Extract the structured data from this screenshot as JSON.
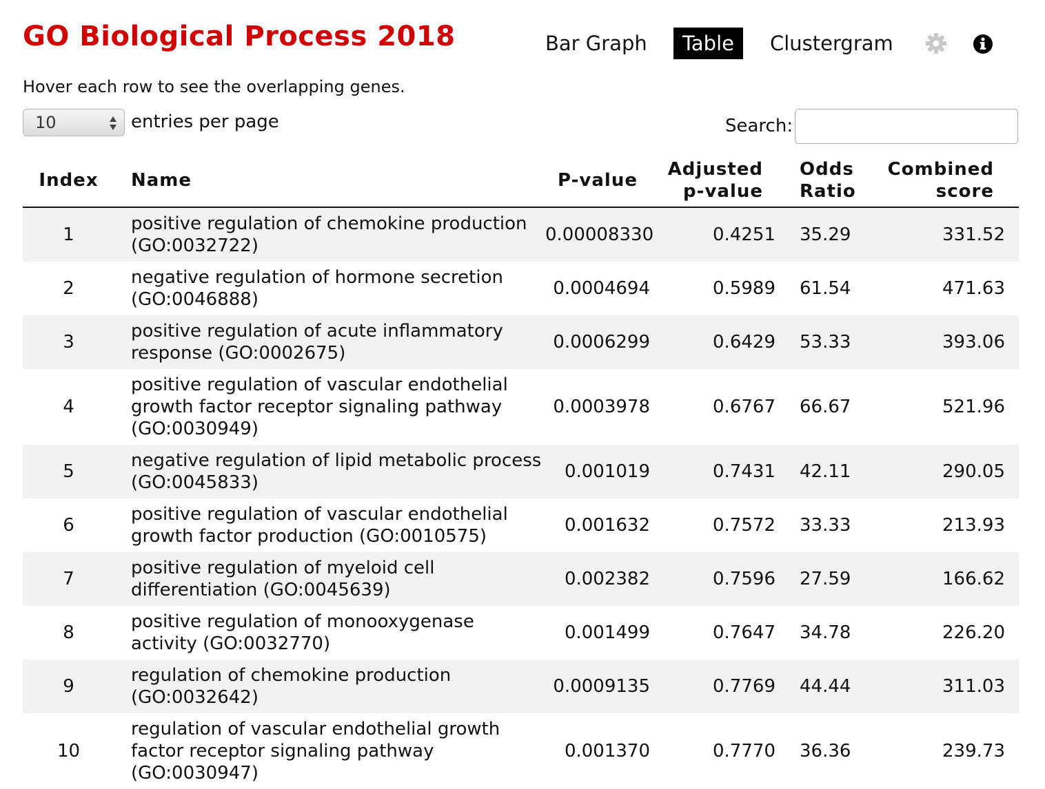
{
  "title": "GO Biological Process 2018",
  "view_tabs": [
    {
      "label": "Bar Graph",
      "active": false
    },
    {
      "label": "Table",
      "active": true
    },
    {
      "label": "Clustergram",
      "active": false
    }
  ],
  "icons": {
    "settings": "gear-icon",
    "info": "info-icon"
  },
  "colors": {
    "title": "#d00000",
    "active_tab_bg": "#000000",
    "stripe": "#f2f2f2"
  },
  "hint": "Hover each row to see the overlapping genes.",
  "paging": {
    "entries_value": "10",
    "entries_label": "entries per page"
  },
  "search": {
    "label": "Search:",
    "value": ""
  },
  "table": {
    "headers": {
      "index": "Index",
      "name": "Name",
      "pvalue": "P-value",
      "adjusted_line1": "Adjusted",
      "adjusted_line2": "p-value",
      "odds_line1": "Odds",
      "odds_line2": "Ratio",
      "combined_line1": "Combined",
      "combined_line2": "score"
    },
    "rows": [
      {
        "index": "1",
        "name": "positive regulation of chemokine production (GO:0032722)",
        "pvalue": "0.00008330",
        "adjusted": "0.4251",
        "odds": "35.29",
        "combined": "331.52"
      },
      {
        "index": "2",
        "name": "negative regulation of hormone secretion (GO:0046888)",
        "pvalue": "0.0004694",
        "adjusted": "0.5989",
        "odds": "61.54",
        "combined": "471.63"
      },
      {
        "index": "3",
        "name": "positive regulation of acute inflammatory response (GO:0002675)",
        "pvalue": "0.0006299",
        "adjusted": "0.6429",
        "odds": "53.33",
        "combined": "393.06"
      },
      {
        "index": "4",
        "name": "positive regulation of vascular endothelial growth factor receptor signaling pathway (GO:0030949)",
        "pvalue": "0.0003978",
        "adjusted": "0.6767",
        "odds": "66.67",
        "combined": "521.96"
      },
      {
        "index": "5",
        "name": "negative regulation of lipid metabolic process (GO:0045833)",
        "pvalue": "0.001019",
        "adjusted": "0.7431",
        "odds": "42.11",
        "combined": "290.05"
      },
      {
        "index": "6",
        "name": "positive regulation of vascular endothelial growth factor production (GO:0010575)",
        "pvalue": "0.001632",
        "adjusted": "0.7572",
        "odds": "33.33",
        "combined": "213.93"
      },
      {
        "index": "7",
        "name": "positive regulation of myeloid cell differentiation (GO:0045639)",
        "pvalue": "0.002382",
        "adjusted": "0.7596",
        "odds": "27.59",
        "combined": "166.62"
      },
      {
        "index": "8",
        "name": "positive regulation of monooxygenase activity (GO:0032770)",
        "pvalue": "0.001499",
        "adjusted": "0.7647",
        "odds": "34.78",
        "combined": "226.20"
      },
      {
        "index": "9",
        "name": "regulation of chemokine production (GO:0032642)",
        "pvalue": "0.0009135",
        "adjusted": "0.7769",
        "odds": "44.44",
        "combined": "311.03"
      },
      {
        "index": "10",
        "name": "regulation of vascular endothelial growth factor receptor signaling pathway (GO:0030947)",
        "pvalue": "0.001370",
        "adjusted": "0.7770",
        "odds": "36.36",
        "combined": "239.73"
      }
    ]
  }
}
